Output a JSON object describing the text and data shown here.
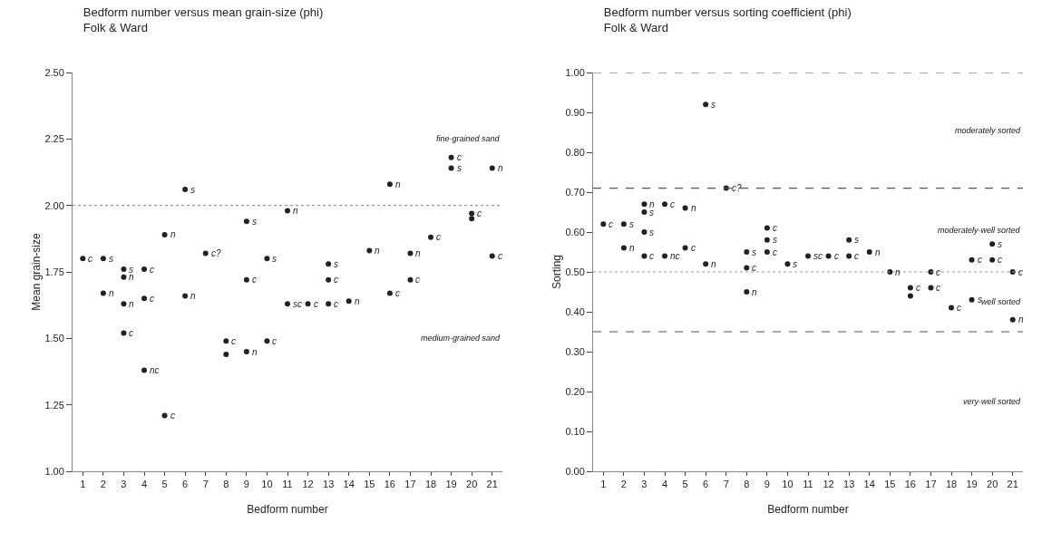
{
  "chart_data": [
    {
      "type": "scatter",
      "title": "Bedform number versus mean grain-size (phi)",
      "subtitle": "Folk & Ward",
      "xlabel": "Bedform number",
      "ylabel": "Mean grain-size",
      "xlim": [
        0.5,
        21.5
      ],
      "xticks": [
        1,
        2,
        3,
        4,
        5,
        6,
        7,
        8,
        9,
        10,
        11,
        12,
        13,
        14,
        15,
        16,
        17,
        18,
        19,
        20,
        21
      ],
      "ylim": [
        1,
        2.5
      ],
      "yticks": [
        {
          "value": 1,
          "label": "1.00"
        },
        {
          "value": 1.25,
          "label": "1.25"
        },
        {
          "value": 1.5,
          "label": "1.50"
        },
        {
          "value": 1.75,
          "label": "1.75"
        },
        {
          "value": 2,
          "label": "2.00"
        },
        {
          "value": 2.25,
          "label": "2.25"
        },
        {
          "value": 2.5,
          "label": "2.50"
        }
      ],
      "grid": false,
      "marker": "circle",
      "series": [
        {
          "color": "#222222",
          "x": [
            1,
            2,
            2,
            3,
            3,
            3,
            3,
            4,
            4,
            4,
            5,
            5,
            6,
            6,
            7,
            8,
            8,
            9,
            9,
            9,
            10,
            10,
            11,
            11,
            12,
            13,
            13,
            13,
            14,
            15,
            16,
            16,
            17,
            17,
            18,
            19,
            19,
            20,
            20,
            21,
            21
          ],
          "values": [
            1.8,
            1.8,
            1.67,
            1.76,
            1.73,
            1.63,
            1.52,
            1.76,
            1.65,
            1.38,
            1.89,
            1.21,
            2.06,
            1.66,
            1.82,
            1.49,
            1.44,
            1.94,
            1.72,
            1.45,
            1.8,
            1.49,
            1.98,
            1.63,
            1.63,
            1.78,
            1.72,
            1.63,
            1.64,
            1.83,
            2.08,
            1.67,
            1.82,
            1.72,
            1.88,
            2.18,
            2.14,
            1.97,
            1.95,
            2.14,
            1.81
          ]
        }
      ],
      "ref_lines": [
        {
          "axis": "y",
          "value": 2,
          "line_style": "dotted",
          "color": "#999999"
        }
      ],
      "annotations": [
        "fine-grained sand",
        "medium-grained sand",
        {
          "text": "c",
          "x": 1,
          "y": 1.8
        },
        {
          "text": "s",
          "x": 2,
          "y": 1.8
        },
        {
          "text": "n",
          "x": 2,
          "y": 1.67
        },
        {
          "text": "s",
          "x": 3,
          "y": 1.76
        },
        {
          "text": "n",
          "x": 3,
          "y": 1.73
        },
        {
          "text": "n",
          "x": 3,
          "y": 1.63
        },
        {
          "text": "c",
          "x": 3,
          "y": 1.52
        },
        {
          "text": "c",
          "x": 4,
          "y": 1.76
        },
        {
          "text": "c",
          "x": 4,
          "y": 1.65
        },
        {
          "text": "nc",
          "x": 4,
          "y": 1.38
        },
        {
          "text": "n",
          "x": 5,
          "y": 1.89
        },
        {
          "text": "c",
          "x": 5,
          "y": 1.21
        },
        {
          "text": "s",
          "x": 6,
          "y": 2.06
        },
        {
          "text": "n",
          "x": 6,
          "y": 1.66
        },
        {
          "text": "c?",
          "x": 7,
          "y": 1.82
        },
        {
          "text": "c",
          "x": 8,
          "y": 1.49
        },
        {
          "text": "s",
          "x": 9,
          "y": 1.94
        },
        {
          "text": "c",
          "x": 9,
          "y": 1.72
        },
        {
          "text": "n",
          "x": 9,
          "y": 1.45
        },
        {
          "text": "s",
          "x": 10,
          "y": 1.8
        },
        {
          "text": "c",
          "x": 10,
          "y": 1.49
        },
        {
          "text": "n",
          "x": 11,
          "y": 1.98
        },
        {
          "text": "sc",
          "x": 11,
          "y": 1.63
        },
        {
          "text": "c",
          "x": 12,
          "y": 1.63
        },
        {
          "text": "s",
          "x": 13,
          "y": 1.78
        },
        {
          "text": "c",
          "x": 13,
          "y": 1.72
        },
        {
          "text": "c",
          "x": 13,
          "y": 1.63
        },
        {
          "text": "n",
          "x": 14,
          "y": 1.64
        },
        {
          "text": "n",
          "x": 15,
          "y": 1.83
        },
        {
          "text": "n",
          "x": 16,
          "y": 2.08
        },
        {
          "text": "c",
          "x": 16,
          "y": 1.67
        },
        {
          "text": "n",
          "x": 17,
          "y": 1.82
        },
        {
          "text": "c",
          "x": 17,
          "y": 1.72
        },
        {
          "text": "c",
          "x": 18,
          "y": 1.88
        },
        {
          "text": "c",
          "x": 19,
          "y": 2.18
        },
        {
          "text": "s",
          "x": 19,
          "y": 2.14
        },
        {
          "text": "c",
          "x": 20,
          "y": 1.97
        },
        {
          "text": "n",
          "x": 21,
          "y": 2.14
        },
        {
          "text": "c",
          "x": 21,
          "y": 1.81
        }
      ]
    },
    {
      "type": "scatter",
      "title": "Bedform number versus sorting coefficient (phi)",
      "subtitle": "Folk & Ward",
      "xlabel": "Bedform number",
      "ylabel": "Sorting",
      "xlim": [
        0.5,
        21.5
      ],
      "xticks": [
        1,
        2,
        3,
        4,
        5,
        6,
        7,
        8,
        9,
        10,
        11,
        12,
        13,
        14,
        15,
        16,
        17,
        18,
        19,
        20,
        21
      ],
      "ylim": [
        0,
        1
      ],
      "yticks": [
        {
          "value": 0,
          "label": "0.00"
        },
        {
          "value": 0.1,
          "label": "0.10"
        },
        {
          "value": 0.2,
          "label": "0.20"
        },
        {
          "value": 0.3,
          "label": "0.30"
        },
        {
          "value": 0.4,
          "label": "0.40"
        },
        {
          "value": 0.5,
          "label": "0.50"
        },
        {
          "value": 0.6,
          "label": "0.60"
        },
        {
          "value": 0.7,
          "label": "0.70"
        },
        {
          "value": 0.8,
          "label": "0.80"
        },
        {
          "value": 0.9,
          "label": "0.90"
        },
        {
          "value": 1,
          "label": "1.00"
        }
      ],
      "grid": false,
      "marker": "circle",
      "series": [
        {
          "color": "#222222",
          "x": [
            1,
            2,
            2,
            3,
            3,
            3,
            3,
            4,
            4,
            5,
            5,
            6,
            6,
            7,
            8,
            8,
            8,
            9,
            9,
            9,
            10,
            11,
            12,
            13,
            13,
            14,
            15,
            16,
            16,
            17,
            17,
            18,
            19,
            19,
            20,
            20,
            21,
            21
          ],
          "values": [
            0.62,
            0.62,
            0.56,
            0.67,
            0.65,
            0.6,
            0.54,
            0.67,
            0.54,
            0.66,
            0.56,
            0.92,
            0.52,
            0.71,
            0.55,
            0.51,
            0.45,
            0.61,
            0.58,
            0.55,
            0.52,
            0.54,
            0.54,
            0.58,
            0.54,
            0.55,
            0.5,
            0.46,
            0.44,
            0.5,
            0.46,
            0.41,
            0.53,
            0.43,
            0.57,
            0.53,
            0.5,
            0.38
          ]
        }
      ],
      "ref_lines": [
        {
          "axis": "y",
          "value": 1,
          "line_style": "dashed",
          "color": "#555555"
        },
        {
          "axis": "y",
          "value": 0.71,
          "line_style": "dashed",
          "color": "#555555"
        },
        {
          "axis": "y",
          "value": 0.5,
          "line_style": "dotted",
          "color": "#999999"
        },
        {
          "axis": "y",
          "value": 0.35,
          "line_style": "dashed",
          "color": "#555555"
        }
      ],
      "annotations": [
        "moderately sorted",
        "moderately-well sorted",
        "well sorted",
        "very-well sorted",
        {
          "text": "c",
          "x": 1,
          "y": 0.62
        },
        {
          "text": "s",
          "x": 2,
          "y": 0.62
        },
        {
          "text": "n",
          "x": 2,
          "y": 0.56
        },
        {
          "text": "n",
          "x": 3,
          "y": 0.67
        },
        {
          "text": "s",
          "x": 3,
          "y": 0.65
        },
        {
          "text": "s",
          "x": 3,
          "y": 0.6
        },
        {
          "text": "c",
          "x": 3,
          "y": 0.54
        },
        {
          "text": "c",
          "x": 4,
          "y": 0.67
        },
        {
          "text": "nc",
          "x": 4,
          "y": 0.54
        },
        {
          "text": "n",
          "x": 5,
          "y": 0.66
        },
        {
          "text": "c",
          "x": 5,
          "y": 0.56
        },
        {
          "text": "s",
          "x": 6,
          "y": 0.92
        },
        {
          "text": "n",
          "x": 6,
          "y": 0.52
        },
        {
          "text": "c?",
          "x": 7,
          "y": 0.71
        },
        {
          "text": "s",
          "x": 8,
          "y": 0.55
        },
        {
          "text": "c",
          "x": 8,
          "y": 0.51
        },
        {
          "text": "n",
          "x": 8,
          "y": 0.45
        },
        {
          "text": "c",
          "x": 9,
          "y": 0.61
        },
        {
          "text": "s",
          "x": 9,
          "y": 0.58
        },
        {
          "text": "c",
          "x": 9,
          "y": 0.55
        },
        {
          "text": "s",
          "x": 10,
          "y": 0.52
        },
        {
          "text": "sc",
          "x": 11,
          "y": 0.54
        },
        {
          "text": "c",
          "x": 12,
          "y": 0.54
        },
        {
          "text": "s",
          "x": 13,
          "y": 0.58
        },
        {
          "text": "c",
          "x": 13,
          "y": 0.54
        },
        {
          "text": "n",
          "x": 14,
          "y": 0.55
        },
        {
          "text": "n",
          "x": 15,
          "y": 0.5
        },
        {
          "text": "c",
          "x": 16,
          "y": 0.46
        },
        {
          "text": "c",
          "x": 17,
          "y": 0.5
        },
        {
          "text": "c",
          "x": 17,
          "y": 0.46
        },
        {
          "text": "c",
          "x": 18,
          "y": 0.41
        },
        {
          "text": "c",
          "x": 19,
          "y": 0.53
        },
        {
          "text": "s",
          "x": 19,
          "y": 0.43
        },
        {
          "text": "s",
          "x": 20,
          "y": 0.57
        },
        {
          "text": "c",
          "x": 20,
          "y": 0.53
        },
        {
          "text": "c",
          "x": 21,
          "y": 0.5
        },
        {
          "text": "n",
          "x": 21,
          "y": 0.38
        }
      ]
    }
  ]
}
